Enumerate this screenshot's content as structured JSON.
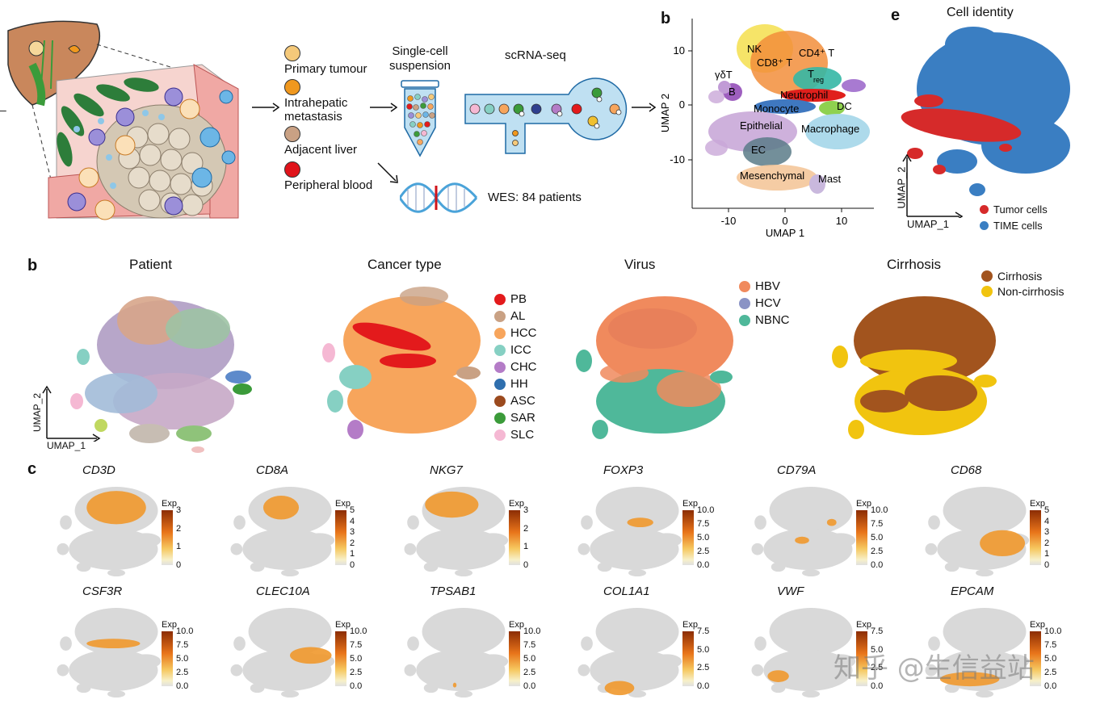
{
  "panel_a": {
    "legend": [
      {
        "label": "Primary tumour",
        "color": "#f5c97a"
      },
      {
        "label": "Intrahepatic metastasis",
        "label_line1": "Intrahepatic",
        "label_line2": "metastasis",
        "color": "#f0981e"
      },
      {
        "label": "Adjacent liver",
        "color": "#c9a184"
      },
      {
        "label": "Peripheral blood",
        "color": "#e0131a"
      }
    ],
    "suspension_line1": "Single-cell",
    "suspension_line2": "suspension",
    "scrna": "scRNA-seq",
    "wes": "WES: 84 patients"
  },
  "panel_b_top": {
    "letter": "b",
    "xlabel": "UMAP 1",
    "ylabel": "UMAP 2",
    "xticks": [
      "-10",
      "0",
      "10"
    ],
    "yticks": [
      "10",
      "0",
      "-10"
    ],
    "labels": [
      {
        "text": "NK"
      },
      {
        "text": "CD8⁺ T"
      },
      {
        "text": "CD4⁺ T"
      },
      {
        "text": "γδT"
      },
      {
        "text": "T"
      },
      {
        "text": "reg"
      },
      {
        "text": "B"
      },
      {
        "text": "Neutrophil"
      },
      {
        "text": "Monocyte"
      },
      {
        "text": "DC"
      },
      {
        "text": "Epithelial"
      },
      {
        "text": "Macrophage"
      },
      {
        "text": "EC"
      },
      {
        "text": "Mesenchymal"
      },
      {
        "text": "Mast"
      }
    ]
  },
  "panel_e": {
    "letter": "e",
    "title": "Cell identity",
    "xlabel": "UMAP_1",
    "ylabel": "UMAP_2",
    "legend": [
      {
        "label": "Tumor cells",
        "color": "#d62a2a"
      },
      {
        "label": "TIME cells",
        "color": "#3a7ec2"
      }
    ]
  },
  "panel_b": {
    "letter": "b",
    "titles": [
      "Patient",
      "Cancer type",
      "Virus",
      "Cirrhosis"
    ],
    "xlabel": "UMAP_1",
    "ylabel": "UMAP_2",
    "cancer_legend": [
      {
        "label": "PB",
        "color": "#e31a1c"
      },
      {
        "label": "AL",
        "color": "#c9a184"
      },
      {
        "label": "HCC",
        "color": "#f7a55c"
      },
      {
        "label": "ICC",
        "color": "#86d0c3"
      },
      {
        "label": "CHC",
        "color": "#b47cc7"
      },
      {
        "label": "HH",
        "color": "#2f6fae"
      },
      {
        "label": "ASC",
        "color": "#9b4a1e"
      },
      {
        "label": "SAR",
        "color": "#3b9b3a"
      },
      {
        "label": "SLC",
        "color": "#f5b8d3"
      }
    ],
    "virus_legend": [
      {
        "label": "HBV",
        "color": "#f08a5d"
      },
      {
        "label": "HCV",
        "color": "#8a93c5"
      },
      {
        "label": "NBNC",
        "color": "#4fb89a"
      }
    ],
    "cirrhosis_legend": [
      {
        "label": "Cirrhosis",
        "color": "#a2541e"
      },
      {
        "label": "Non-cirrhosis",
        "color": "#f1c40f"
      }
    ]
  },
  "panel_c": {
    "letter": "c",
    "exp_label": "Exp",
    "genes": [
      {
        "name": "CD3D",
        "ticks": [
          "3",
          "2",
          "1",
          "0"
        ]
      },
      {
        "name": "CD8A",
        "ticks": [
          "5",
          "4",
          "3",
          "2",
          "1",
          "0"
        ]
      },
      {
        "name": "NKG7",
        "ticks": [
          "3",
          "2",
          "1",
          "0"
        ]
      },
      {
        "name": "FOXP3",
        "ticks": [
          "10.0",
          "7.5",
          "5.0",
          "2.5",
          "0.0"
        ]
      },
      {
        "name": "CD79A",
        "ticks": [
          "10.0",
          "7.5",
          "5.0",
          "2.5",
          "0.0"
        ]
      },
      {
        "name": "CD68",
        "ticks": [
          "5",
          "4",
          "3",
          "2",
          "1",
          "0"
        ]
      },
      {
        "name": "CSF3R",
        "ticks": [
          "10.0",
          "7.5",
          "5.0",
          "2.5",
          "0.0"
        ]
      },
      {
        "name": "CLEC10A",
        "ticks": [
          "10.0",
          "7.5",
          "5.0",
          "2.5",
          "0.0"
        ]
      },
      {
        "name": "TPSAB1",
        "ticks": [
          "10.0",
          "7.5",
          "5.0",
          "2.5",
          "0.0"
        ]
      },
      {
        "name": "COL1A1",
        "ticks": [
          "7.5",
          "5.0",
          "2.5",
          "0.0"
        ]
      },
      {
        "name": "VWF",
        "ticks": [
          "7.5",
          "5.0",
          "2.5",
          "0.0"
        ]
      },
      {
        "name": "EPCAM",
        "ticks": [
          "10.0",
          "7.5",
          "5.0",
          "2.5",
          "0.0"
        ]
      }
    ]
  },
  "watermark": "知乎 @生信益站",
  "colors": {
    "grey_umap": "#d9d9d9",
    "exp_low": "#f7f0c8",
    "exp_high": "#8c2d04"
  }
}
